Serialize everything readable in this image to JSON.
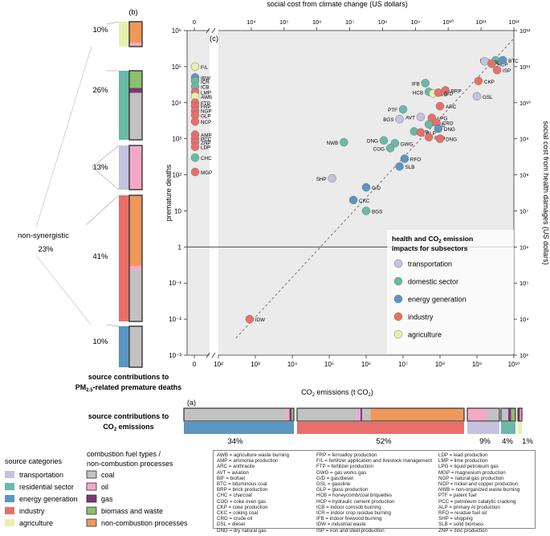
{
  "panel_a": {
    "label": "(a)",
    "title_line1": "source contributions to",
    "title_line2": "CO",
    "title_line2_sub": "2",
    "title_line2_rest": " emissions",
    "groups": [
      {
        "pct": "34%",
        "fuel": [
          [
            0.93,
            "coal"
          ],
          [
            0.03,
            "oil"
          ],
          [
            0.02,
            "gas"
          ],
          [
            0.02,
            "biomass"
          ]
        ],
        "cat": "energy"
      },
      {
        "pct": "52%",
        "fuel": [
          [
            0.36,
            "coal"
          ],
          [
            0.02,
            "oil"
          ],
          [
            0.01,
            "gas"
          ],
          [
            0.05,
            "coal"
          ],
          [
            0.56,
            "process"
          ]
        ],
        "cat": "industry"
      },
      {
        "pct": "9%",
        "fuel": [
          [
            0.6,
            "oil"
          ],
          [
            0.4,
            "coal"
          ]
        ],
        "cat": "transport"
      },
      {
        "pct": "4%",
        "fuel": [
          [
            0.5,
            "coal"
          ],
          [
            0.2,
            "gas"
          ],
          [
            0.3,
            "biomass"
          ]
        ],
        "cat": "residential"
      },
      {
        "pct": "1%",
        "fuel": [
          [
            0.5,
            "gas"
          ],
          [
            0.5,
            "oil"
          ]
        ],
        "cat": "agriculture"
      }
    ]
  },
  "panel_b": {
    "label": "(b)",
    "title_line1": "source contributions to",
    "title_line2": "PM",
    "title_line2_sub": "2.5",
    "title_line2_rest": "-related premature deaths",
    "nonsyn_label": "non-synergistic",
    "nonsyn_pct": "23%",
    "groups": [
      {
        "pct": "10%",
        "cat": "agriculture",
        "fuel": [
          [
            0.85,
            "process"
          ],
          [
            0.15,
            "oil"
          ]
        ]
      },
      {
        "pct": "26%",
        "cat": "residential",
        "fuel": [
          [
            0.25,
            "biomass"
          ],
          [
            0.07,
            "gas"
          ],
          [
            0.68,
            "coal"
          ]
        ]
      },
      {
        "pct": "13%",
        "cat": "transport",
        "fuel": [
          [
            1.0,
            "oil"
          ]
        ]
      },
      {
        "pct": "41%",
        "cat": "industry",
        "fuel": [
          [
            0.56,
            "process"
          ],
          [
            0.03,
            "oil"
          ],
          [
            0.41,
            "coal"
          ]
        ]
      },
      {
        "pct": "10%",
        "cat": "energy",
        "fuel": [
          [
            1.0,
            "coal"
          ]
        ]
      }
    ]
  },
  "chart_data": {
    "type": "scatter",
    "panel_label": "(c)",
    "xlabel": "CO2 emissions (t CO2)",
    "ylabel": "premature deaths",
    "top_label": "social cost from climate change (US dollars)",
    "right_label": "social cost from health damages (US dollars)",
    "xlim": [
      100,
      10000000000
    ],
    "ylim": [
      0.001,
      1000000
    ],
    "top_range": [
      1000,
      1000000000000
    ],
    "right_range": [
      0.001,
      1000000000000
    ],
    "x_ticks": [
      "10²",
      "10³",
      "10⁴",
      "10⁵",
      "10⁶",
      "10⁷",
      "10⁸",
      "10⁹",
      "10¹⁰"
    ],
    "y_ticks": [
      "10⁻³",
      "10⁻²",
      "10⁻¹",
      "1",
      "10",
      "10²",
      "10³",
      "10⁴",
      "10⁵",
      "10⁶"
    ],
    "top_ticks": [
      "10⁴",
      "10⁵",
      "10⁶",
      "10⁷",
      "10⁸",
      "10⁹",
      "10¹⁰",
      "10¹¹",
      "10¹²"
    ],
    "right_ticks": [
      "10³",
      "10⁴",
      "10⁵",
      "10⁶",
      "10⁷",
      "10⁸",
      "10⁹",
      "10¹⁰",
      "10¹¹",
      "10¹²"
    ],
    "left_strip_x_tick": "0",
    "top_strip_tick": "0",
    "legend_title_line1": "health and CO",
    "legend_title_sub": "2",
    "legend_title_line1_rest": " emission",
    "legend_title_line2": "impacts for subsectors",
    "legend_entries": [
      {
        "label": "transportation",
        "cat": "transport"
      },
      {
        "label": "domestic sector",
        "cat": "residential"
      },
      {
        "label": "energy generation",
        "cat": "energy"
      },
      {
        "label": "industry",
        "cat": "industry"
      },
      {
        "label": "agriculture",
        "cat": "agriculture"
      }
    ],
    "points": [
      {
        "code": "BTC",
        "x": 3200000000.0,
        "y": 150000,
        "cat": "residential"
      },
      {
        "code": "DSL",
        "x": 1600000000.0,
        "y": 140000,
        "cat": "transport"
      },
      {
        "code": "HCP",
        "x": 2500000000.0,
        "y": 120000,
        "cat": "industry"
      },
      {
        "code": "BTC",
        "x": 5000000000.0,
        "y": 150000,
        "cat": "energy"
      },
      {
        "code": "ISP",
        "x": 3500000000.0,
        "y": 80000,
        "cat": "industry"
      },
      {
        "code": "CKP",
        "x": 1100000000.0,
        "y": 40000,
        "cat": "industry"
      },
      {
        "code": "IFB",
        "x": 40000000.0,
        "y": 35000,
        "cat": "residential"
      },
      {
        "code": "HCB",
        "x": 50000000.0,
        "y": 20000,
        "cat": "residential"
      },
      {
        "code": "G/D",
        "x": 65000000.0,
        "y": 18000,
        "cat": "agriculture"
      },
      {
        "code": "BRP",
        "x": 140000000.0,
        "y": 22000,
        "cat": "industry"
      },
      {
        "code": "G/D",
        "x": 90000000.0,
        "y": 19000,
        "cat": "industry"
      },
      {
        "code": "GSL",
        "x": 1000000000.0,
        "y": 15000,
        "cat": "transport"
      },
      {
        "code": "ARC",
        "x": 100000000.0,
        "y": 8000,
        "cat": "industry"
      },
      {
        "code": "PTF",
        "x": 10000000.0,
        "y": 6500,
        "cat": "residential"
      },
      {
        "code": "BGS",
        "x": 8000000.0,
        "y": 3500,
        "cat": "transport"
      },
      {
        "code": "AVT",
        "x": 30000000.0,
        "y": 4000,
        "cat": "transport"
      },
      {
        "code": "LPG",
        "x": 60000000.0,
        "y": 3800,
        "cat": "industry"
      },
      {
        "code": "CKC",
        "x": 50000000.0,
        "y": 2500,
        "cat": "residential"
      },
      {
        "code": "CRO",
        "x": 80000000.0,
        "y": 2800,
        "cat": "industry"
      },
      {
        "code": "G/D",
        "x": 20000000.0,
        "y": 1600,
        "cat": "residential"
      },
      {
        "code": "ALP",
        "x": 30000000.0,
        "y": 1500,
        "cat": "industry"
      },
      {
        "code": "DNG",
        "x": 90000000.0,
        "y": 1900,
        "cat": "energy"
      },
      {
        "code": "RFO",
        "x": 50000000.0,
        "y": 1100,
        "cat": "industry"
      },
      {
        "code": "DNG",
        "x": 100000000.0,
        "y": 1000,
        "cat": "industry"
      },
      {
        "code": "DNG",
        "x": 3000000.0,
        "y": 900,
        "cat": "residential"
      },
      {
        "code": "GWG",
        "x": 6000000.0,
        "y": 750,
        "cat": "residential"
      },
      {
        "code": "COG",
        "x": 4500000.0,
        "y": 550,
        "cat": "residential"
      },
      {
        "code": "NWB",
        "x": 250000.0,
        "y": 800,
        "cat": "residential"
      },
      {
        "code": "RFO",
        "x": 11000000.0,
        "y": 280,
        "cat": "energy"
      },
      {
        "code": "SLB",
        "x": 8000000.0,
        "y": 170,
        "cat": "energy"
      },
      {
        "code": "SHP",
        "x": 120000.0,
        "y": 80,
        "cat": "transport"
      },
      {
        "code": "G/D",
        "x": 1000000.0,
        "y": 45,
        "cat": "energy"
      },
      {
        "code": "CKC",
        "x": 450000.0,
        "y": 20,
        "cat": "energy"
      },
      {
        "code": "BGS",
        "x": 1000000.0,
        "y": 10,
        "cat": "residential"
      },
      {
        "code": "IDW",
        "x": 700,
        "y": 0.01,
        "cat": "industry"
      }
    ],
    "strip_points": [
      {
        "code": "F/L",
        "y": 100000,
        "cat": "agriculture"
      },
      {
        "code": "IBW",
        "y": 50000,
        "cat": "energy"
      },
      {
        "code": "ICR",
        "y": 40000,
        "cat": "residential"
      },
      {
        "code": "ICB",
        "y": 28000,
        "cat": "residential"
      },
      {
        "code": "LMP",
        "y": 20000,
        "cat": "industry"
      },
      {
        "code": "AWB",
        "y": 15000,
        "cat": "agriculture"
      },
      {
        "code": "FTP",
        "y": 10000,
        "cat": "industry"
      },
      {
        "code": "FRP",
        "y": 8000,
        "cat": "industry"
      },
      {
        "code": "NGP",
        "y": 6000,
        "cat": "industry"
      },
      {
        "code": "GLP",
        "y": 4500,
        "cat": "industry"
      },
      {
        "code": "NCP",
        "y": 3000,
        "cat": "industry"
      },
      {
        "code": "AMP",
        "y": 1300,
        "cat": "industry"
      },
      {
        "code": "PCC",
        "y": 1000,
        "cat": "industry"
      },
      {
        "code": "ZNP",
        "y": 800,
        "cat": "industry"
      },
      {
        "code": "LDP",
        "y": 600,
        "cat": "industry"
      },
      {
        "code": "CHC",
        "y": 300,
        "cat": "residential"
      },
      {
        "code": "MGP",
        "y": 120,
        "cat": "industry"
      }
    ]
  },
  "colors": {
    "transport": "#c3c3e0",
    "residential": "#69b9a6",
    "energy": "#5b95c2",
    "industry": "#e86f6a",
    "agriculture": "#e8f0b0",
    "coal": "#c2c2c2",
    "oil": "#f4a8c7",
    "gas": "#7a3878",
    "biomass": "#8ebf6c",
    "process": "#f0975a",
    "plot_bg": "#e9e9e9",
    "point_edge": "#777777"
  },
  "source_legend": {
    "title": "source categories",
    "items": [
      {
        "label": "transportation",
        "key": "transport"
      },
      {
        "label": "residential sector",
        "key": "residential"
      },
      {
        "label": "energy generation",
        "key": "energy"
      },
      {
        "label": "industry",
        "key": "industry"
      },
      {
        "label": "agriculture",
        "key": "agriculture"
      }
    ]
  },
  "fuel_legend": {
    "title_line1": "combustion fuel types /",
    "title_line2": "non-combustion processes",
    "items": [
      {
        "label": "coal",
        "key": "coal"
      },
      {
        "label": "oil",
        "key": "oil"
      },
      {
        "label": "gas",
        "key": "gas"
      },
      {
        "label": "biomass and waste",
        "key": "biomass"
      },
      {
        "label": "non-combustion processes",
        "key": "process"
      }
    ]
  },
  "abbreviations": {
    "col1": [
      "AWB = agriculture waste burning",
      "AMP = ammonia production",
      "ARC = anthracite",
      "AVT = aviation",
      "BIF = biofuel",
      "BTC = bituminous coal",
      "BRP = brick production",
      "CHC = charcoal",
      "COG = coke oven gas",
      "CKP = coke production",
      "CKC = coking coal",
      "CRO = crude oil",
      "DSL = diesel",
      "DNG = dry natural gas"
    ],
    "col2": [
      "FRP = ferroalloy production",
      "F/L = fertilizer application and livestock management",
      "FTP = fertilizer production",
      "GWG = gas works gas",
      "G/D = gas/diesel",
      "GSL = gasoline",
      "GLP = glass production",
      "HCB = honeycomb/coal briquettes",
      "HCP = hydraulic cement production",
      "ICB = indoor cornsob burning",
      "ICR = indoor crop residue burning",
      "IFB = indoor firewood burning",
      "IDW = industrial waste",
      "ISP = iron and steel production"
    ],
    "col3": [
      "LDP = lead production",
      "LMP = lime production",
      "LPG = liquid petroleum gas",
      "MGP = magnesium production",
      "NGP = natural gas production",
      "NCP = nickel and copper production",
      "NWB = non-organized waste burning",
      "PTF = patent fuel",
      "PCC = petroleum catalytic cracking",
      "ALP = primary Al production",
      "RFO = residue fuel oil",
      "SHP = shipping",
      "SLB = solid biomass",
      "ZNP = zinc production"
    ]
  }
}
